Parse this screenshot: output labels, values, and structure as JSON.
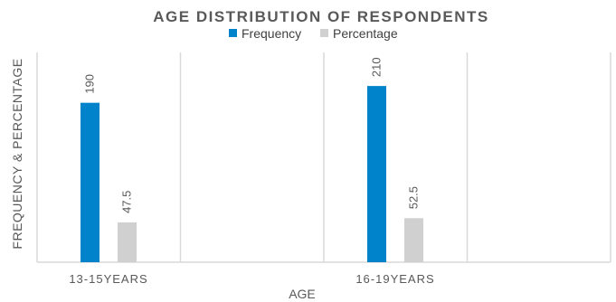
{
  "chart_data": {
    "type": "bar",
    "title": "AGE DISTRIBUTION OF RESPONDENTS",
    "xlabel": "AGE",
    "ylabel": "FREQUENCY & PERCENTAGE",
    "categories": [
      "13-15YEARS",
      "16-19YEARS"
    ],
    "series": [
      {
        "name": "Frequency",
        "values": [
          190,
          210
        ],
        "color": "#0083CA"
      },
      {
        "name": "Percentage",
        "values": [
          47.5,
          52.5
        ],
        "color": "#D0D0D0"
      }
    ],
    "ylim": [
      0,
      250
    ],
    "grid": "vertical",
    "legend": "top-center",
    "data_labels": [
      "190",
      "210",
      "47.5",
      "52.5"
    ]
  }
}
